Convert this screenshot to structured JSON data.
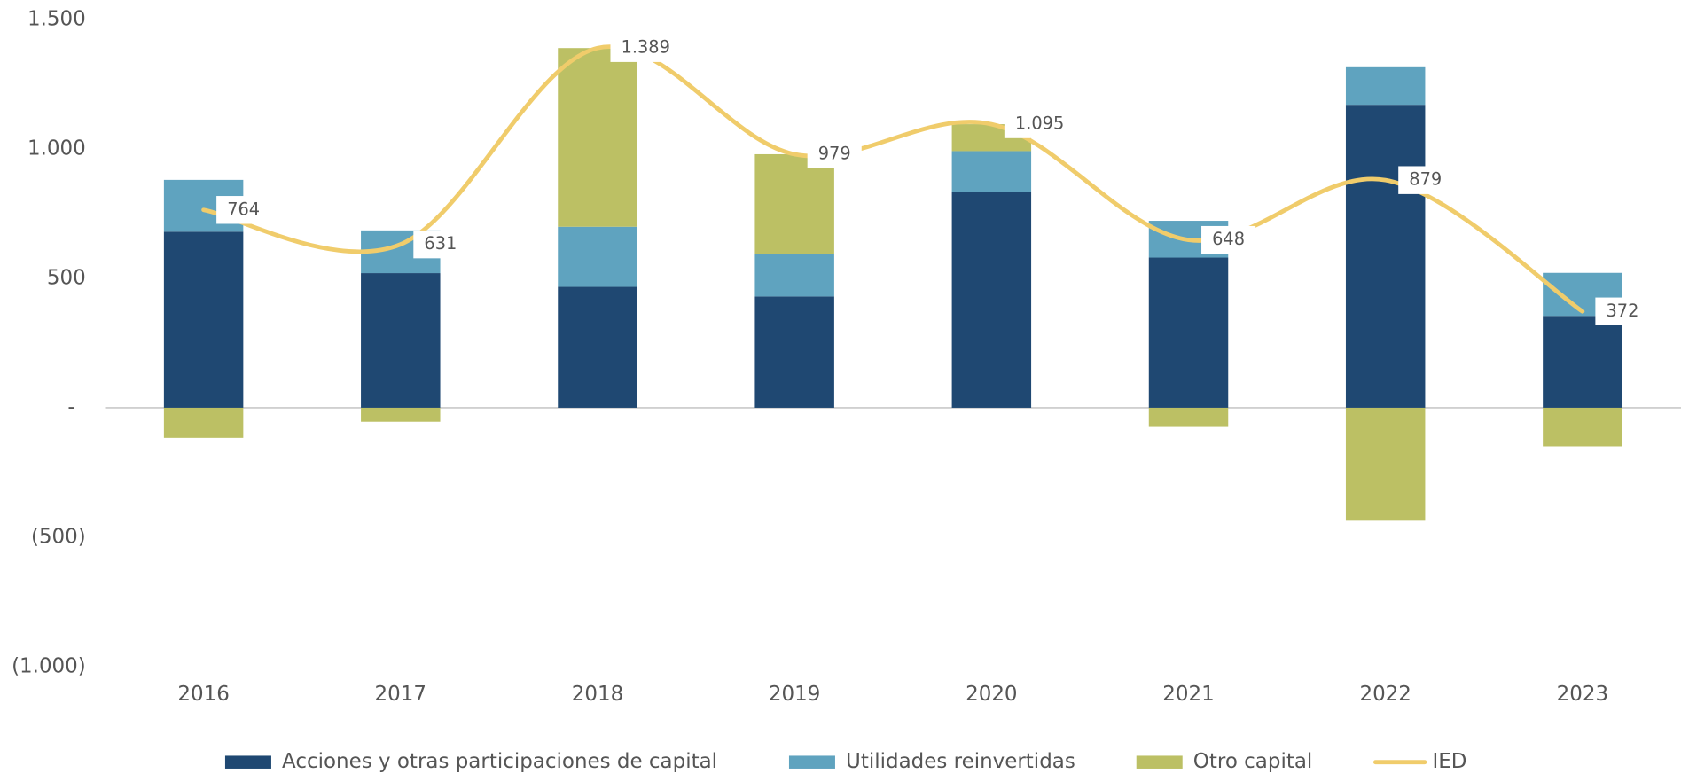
{
  "chart_data": {
    "type": "bar",
    "stacked": true,
    "categories": [
      "2016",
      "2017",
      "2018",
      "2019",
      "2020",
      "2021",
      "2022",
      "2023"
    ],
    "series": [
      {
        "name": "Acciones y otras participaciones de capital",
        "color": "#1f4872",
        "values": [
          680,
          520,
          467,
          430,
          834,
          580,
          1170,
          355
        ]
      },
      {
        "name": "Utilidades reinvertidas",
        "color": "#5fa3bf",
        "values": [
          200,
          165,
          232,
          165,
          157,
          142,
          145,
          166
        ]
      },
      {
        "name": "Otro capital",
        "color": "#bcc064",
        "values": [
          -116,
          -54,
          690,
          384,
          104,
          -74,
          -436,
          -149
        ]
      },
      {
        "name": "IED",
        "type": "line",
        "color": "#f0cc6b",
        "values": [
          764,
          631,
          1389,
          979,
          1095,
          648,
          879,
          372
        ],
        "value_labels": [
          "764",
          "631",
          "1.389",
          "979",
          "1.095",
          "648",
          "879",
          "372"
        ]
      }
    ],
    "ylim": [
      -1000,
      1500
    ],
    "yticks": [
      {
        "value": -1000,
        "label": "(1.000)"
      },
      {
        "value": -500,
        "label": "(500)"
      },
      {
        "value": 0,
        "label": "-"
      },
      500,
      {
        "value": 1000,
        "label": "1.000"
      },
      {
        "value": 1500,
        "label": "1.500"
      }
    ],
    "legend": "bottom"
  }
}
